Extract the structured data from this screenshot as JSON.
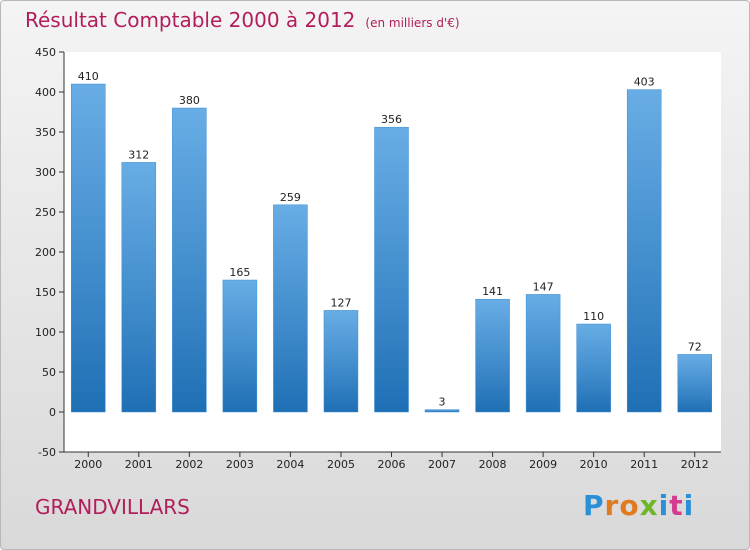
{
  "chart_data": {
    "type": "bar",
    "title": "Résultat Comptable 2000 à 2012",
    "subtitle": "(en milliers d'€)",
    "categories": [
      "2000",
      "2001",
      "2002",
      "2003",
      "2004",
      "2005",
      "2006",
      "2007",
      "2008",
      "2009",
      "2010",
      "2011",
      "2012"
    ],
    "values": [
      410,
      312,
      380,
      165,
      259,
      127,
      356,
      3,
      141,
      147,
      110,
      403,
      72
    ],
    "ylim": [
      -50,
      450
    ],
    "yticks": [
      -50,
      0,
      50,
      100,
      150,
      200,
      250,
      300,
      350,
      400,
      450
    ],
    "xlabel": "",
    "ylabel": "",
    "grid": false,
    "bar_color": "#4d9ee0",
    "text_color": "#b21d5b"
  },
  "commune": "GRANDVILLARS",
  "logo": {
    "letters": [
      "P",
      "r",
      "o",
      "x",
      "i",
      "t",
      "i"
    ],
    "colors": [
      "#2a8fd6",
      "#e07a1f",
      "#e07a1f",
      "#6fb72a",
      "#2a8fd6",
      "#d33c8f",
      "#2a8fd6"
    ]
  }
}
